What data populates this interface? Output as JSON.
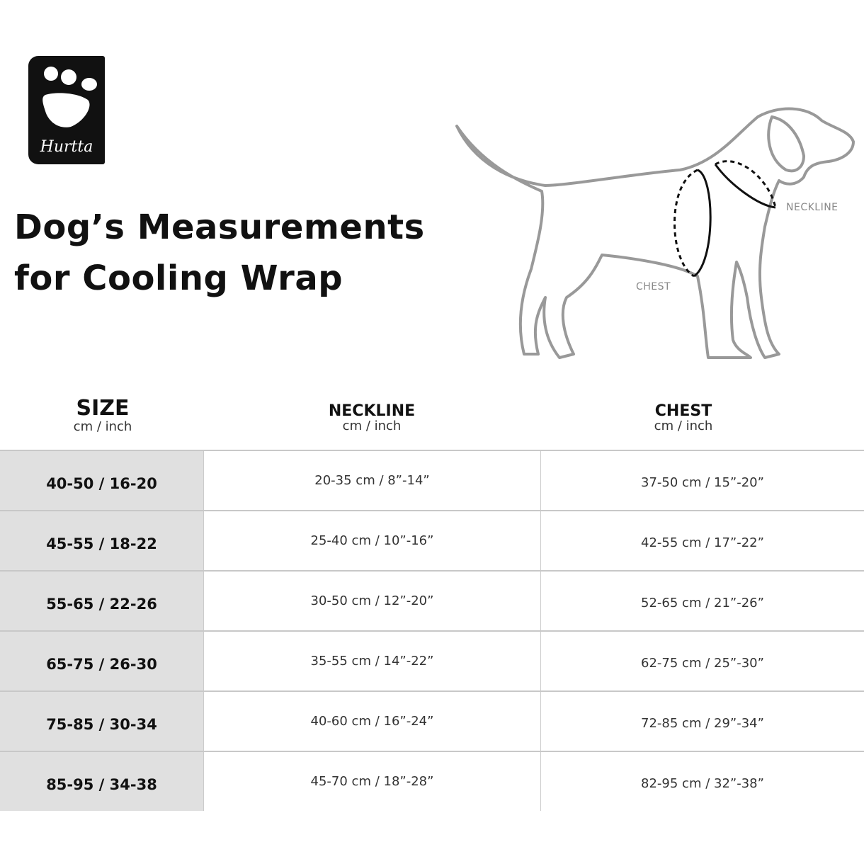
{
  "logo": {
    "text": "Hurtta"
  },
  "title": {
    "line1": "Dog’s Measurements",
    "line2": "for Cooling Wrap"
  },
  "illustration": {
    "neckline_label": "NECKLINE",
    "chest_label": "CHEST"
  },
  "table": {
    "headers": [
      {
        "title": "SIZE",
        "unit": "cm / inch"
      },
      {
        "title": "NECKLINE",
        "unit": "cm / inch"
      },
      {
        "title": "CHEST",
        "unit": "cm / inch"
      }
    ],
    "rows": [
      {
        "size": "40-50 / 16-20",
        "neckline": "20-35 cm / 8”-14”",
        "chest": "37-50 cm / 15”-20”"
      },
      {
        "size": "45-55 / 18-22",
        "neckline": "25-40 cm / 10”-16”",
        "chest": "42-55 cm / 17”-22”"
      },
      {
        "size": "55-65 / 22-26",
        "neckline": "30-50 cm / 12”-20”",
        "chest": "52-65 cm / 21”-26”"
      },
      {
        "size": "65-75 / 26-30",
        "neckline": "35-55 cm / 14”-22”",
        "chest": "62-75 cm / 25”-30”"
      },
      {
        "size": "75-85 / 30-34",
        "neckline": "40-60 cm / 16”-24”",
        "chest": "72-85 cm / 29”-34”"
      },
      {
        "size": "85-95 / 34-38",
        "neckline": "45-70 cm / 18”-28”",
        "chest": "82-95 cm / 32”-38”"
      }
    ]
  }
}
